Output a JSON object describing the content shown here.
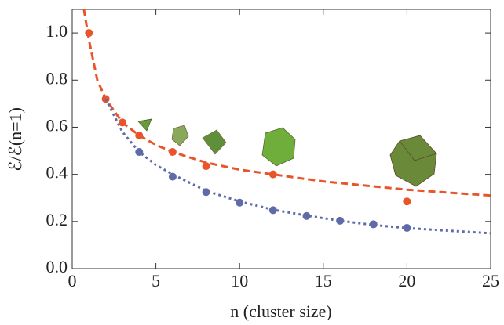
{
  "chart_data": {
    "type": "scatter",
    "x_label": "n (cluster size)",
    "y_label": "ℰ/ℰ(n=1)",
    "xlim": [
      0,
      25
    ],
    "ylim": [
      0,
      1.1
    ],
    "xticks": [
      0,
      5,
      10,
      15,
      20,
      25
    ],
    "yticks": [
      {
        "value": 0,
        "label": "0.0"
      },
      0.2,
      0.4,
      0.6,
      0.8,
      {
        "value": 1,
        "label": "1.0"
      }
    ],
    "series": [
      {
        "color": "#e8552a",
        "style": "points",
        "x": [
          1,
          2,
          3,
          4,
          6,
          8,
          12,
          20
        ],
        "values": [
          1.0,
          0.72,
          0.62,
          0.565,
          0.495,
          0.435,
          0.4,
          0.285
        ]
      },
      {
        "color": "#5f6ba8",
        "style": "points",
        "x": [
          4,
          6,
          8,
          10,
          12,
          14,
          16,
          18,
          20
        ],
        "values": [
          0.495,
          0.39,
          0.325,
          0.28,
          0.248,
          0.223,
          0.203,
          0.188,
          0.173
        ]
      },
      {
        "color": "#e8552a",
        "style": "dashed",
        "x": [
          0.7,
          1,
          1.5,
          2,
          3,
          4,
          5,
          6,
          8,
          10,
          12,
          15,
          20,
          25
        ],
        "values": [
          1.1,
          0.97,
          0.8,
          0.72,
          0.62,
          0.565,
          0.525,
          0.495,
          0.45,
          0.42,
          0.4,
          0.37,
          0.335,
          0.31
        ]
      },
      {
        "color": "#5f6ba8",
        "style": "dotted",
        "x": [
          2,
          3,
          4,
          5,
          6,
          8,
          10,
          12,
          14,
          16,
          18,
          20,
          22,
          25
        ],
        "values": [
          0.72,
          0.58,
          0.495,
          0.44,
          0.4,
          0.33,
          0.285,
          0.25,
          0.225,
          0.203,
          0.185,
          0.172,
          0.163,
          0.15
        ]
      }
    ]
  }
}
